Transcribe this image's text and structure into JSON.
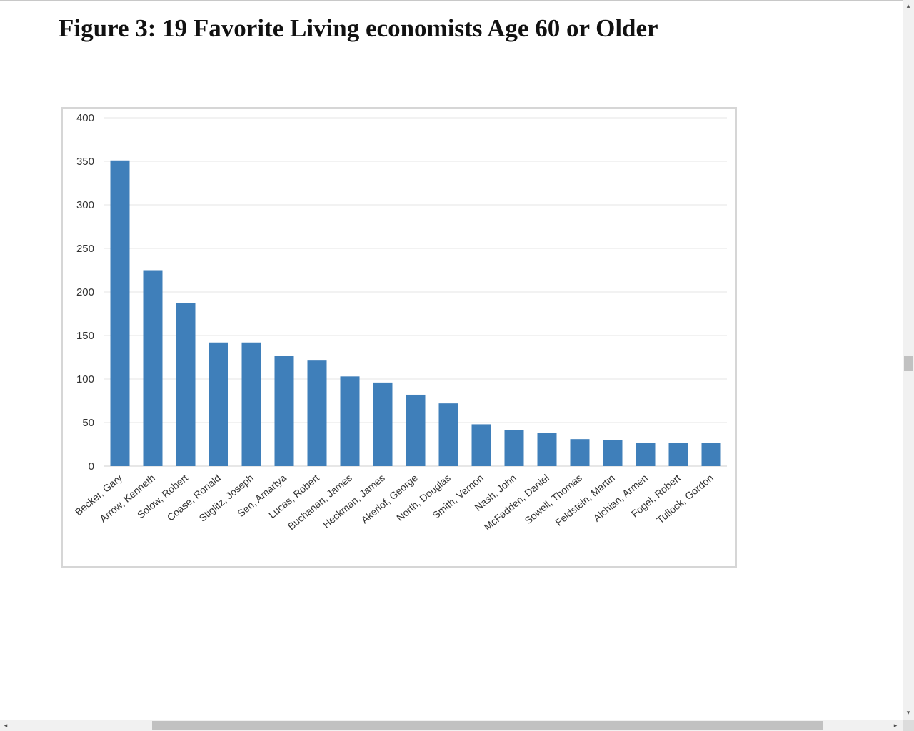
{
  "title": "Figure 3: 19 Favorite Living economists Age 60 or Older",
  "chart_data": {
    "type": "bar",
    "title": "",
    "xlabel": "",
    "ylabel": "",
    "ylim": [
      0,
      400
    ],
    "yticks": [
      0,
      50,
      100,
      150,
      200,
      250,
      300,
      350,
      400
    ],
    "grid": true,
    "bar_color": "#3f7fba",
    "categories": [
      "Becker, Gary",
      "Arrow, Kenneth",
      "Solow, Robert",
      "Coase, Ronald",
      "Stiglitz, Joseph",
      "Sen, Amartya",
      "Lucas, Robert",
      "Buchanan, James",
      "Heckman, James",
      "Akerlof, George",
      "North, Douglas",
      "Smith, Vernon",
      "Nash, John",
      "McFadden, Daniel",
      "Sowell, Thomas",
      "Feldstein, Martin",
      "Alchian, Armen",
      "Fogel, Robert",
      "Tullock, Gordon"
    ],
    "values": [
      351,
      225,
      187,
      142,
      142,
      127,
      122,
      103,
      96,
      82,
      72,
      48,
      41,
      38,
      31,
      30,
      27,
      27,
      27
    ]
  },
  "scrollbar": {
    "left_arrow": "◂",
    "right_arrow": "▸",
    "up_arrow": "▴",
    "down_arrow": "▾"
  }
}
